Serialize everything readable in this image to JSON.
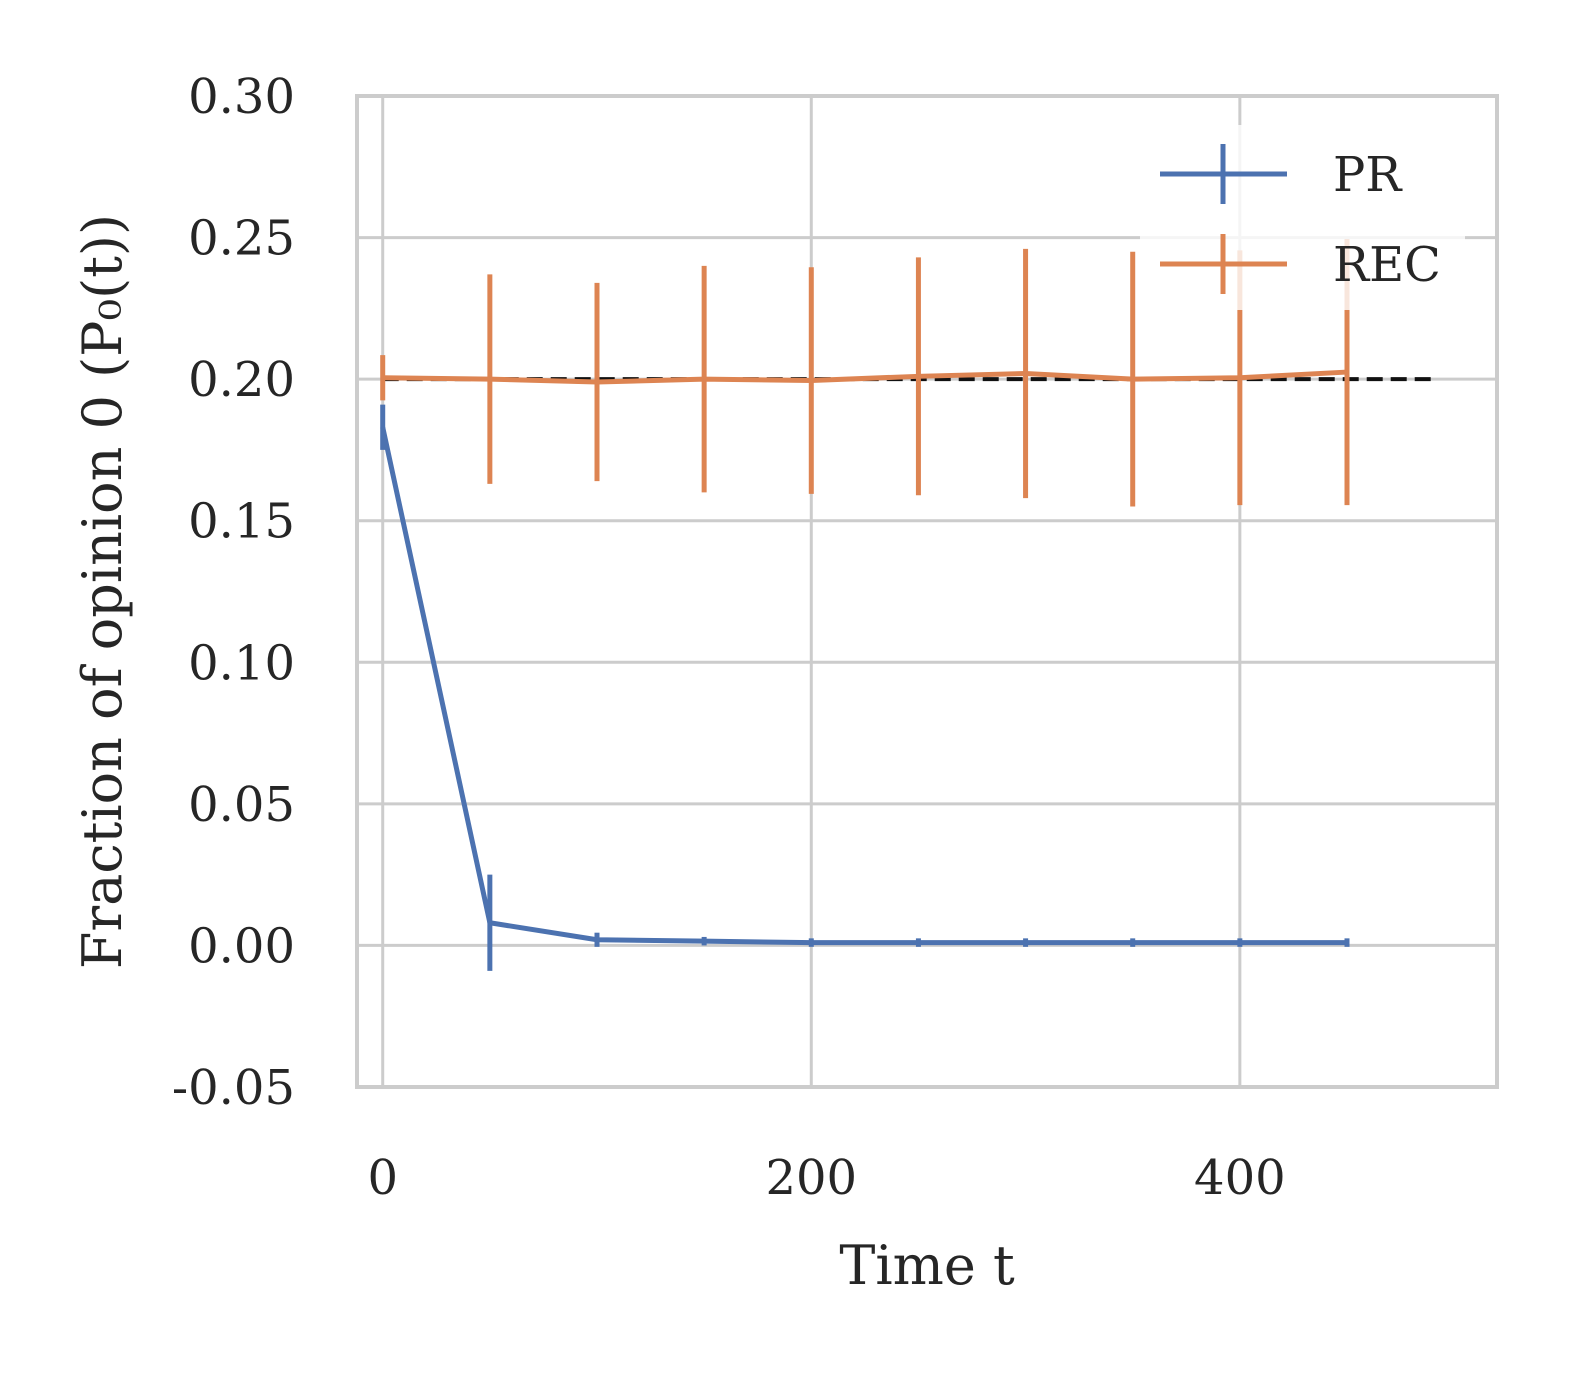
{
  "chart_data": {
    "type": "line",
    "xlabel": "Time t",
    "ylabel": "Fraction of opinion 0 (P₀(t))",
    "xlim": [
      -12,
      520
    ],
    "ylim": [
      -0.05,
      0.3
    ],
    "xticks": [
      0,
      200,
      400
    ],
    "xtick_labels": [
      "0",
      "200",
      "400"
    ],
    "yticks": [
      -0.05,
      0.0,
      0.05,
      0.1,
      0.15,
      0.2,
      0.25,
      0.3
    ],
    "ytick_labels": [
      "-0.05",
      "0.00",
      "0.05",
      "0.10",
      "0.15",
      "0.20",
      "0.25",
      "0.30"
    ],
    "grid": true,
    "legend_position": "top-right",
    "x": [
      0,
      50,
      100,
      150,
      200,
      250,
      300,
      350,
      400,
      450
    ],
    "series": [
      {
        "name": "PR",
        "color": "#4c72b0",
        "values": [
          0.183,
          0.008,
          0.002,
          0.0015,
          0.001,
          0.001,
          0.001,
          0.001,
          0.001,
          0.001
        ],
        "errors": [
          0.008,
          0.017,
          0.0025,
          0.0015,
          0.0015,
          0.0015,
          0.0015,
          0.0015,
          0.0015,
          0.0015
        ]
      },
      {
        "name": "REC",
        "color": "#dd8452",
        "values": [
          0.2005,
          0.2,
          0.199,
          0.2,
          0.1995,
          0.201,
          0.202,
          0.2,
          0.2005,
          0.2025
        ],
        "errors": [
          0.008,
          0.037,
          0.035,
          0.04,
          0.04,
          0.042,
          0.044,
          0.045,
          0.045,
          0.047
        ]
      }
    ],
    "reference_line": {
      "y": 0.2,
      "x_range": [
        0,
        490
      ],
      "style": "dashed",
      "color": "#111111"
    }
  }
}
